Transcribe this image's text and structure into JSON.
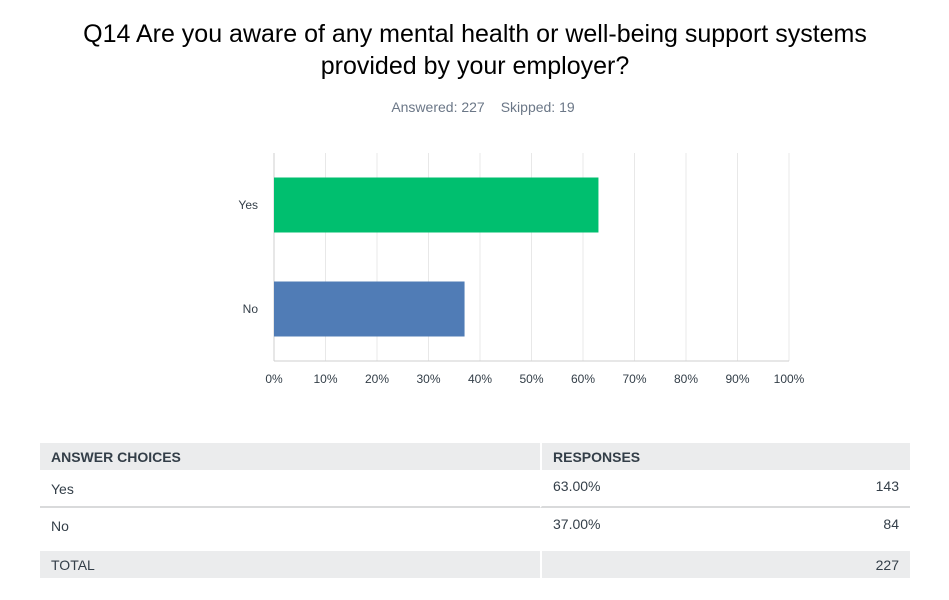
{
  "question": {
    "title": "Q14 Are you aware of any mental health or well-being support systems provided by your employer?",
    "answered": "Answered: 227",
    "skipped": "Skipped: 19"
  },
  "chart_data": {
    "type": "bar",
    "orientation": "horizontal",
    "categories": [
      "Yes",
      "No"
    ],
    "values": [
      63,
      37
    ],
    "colors": [
      "#00bf6f",
      "#507cb6"
    ],
    "xlim": [
      0,
      100
    ],
    "xticks": [
      "0%",
      "10%",
      "20%",
      "30%",
      "40%",
      "50%",
      "60%",
      "70%",
      "80%",
      "90%",
      "100%"
    ],
    "grid": true
  },
  "table": {
    "headers": [
      "ANSWER CHOICES",
      "RESPONSES"
    ],
    "rows": [
      {
        "choice": "Yes",
        "percent": "63.00%",
        "count": "143"
      },
      {
        "choice": "No",
        "percent": "37.00%",
        "count": "84"
      }
    ],
    "total": {
      "label": "TOTAL",
      "count": "227"
    }
  }
}
